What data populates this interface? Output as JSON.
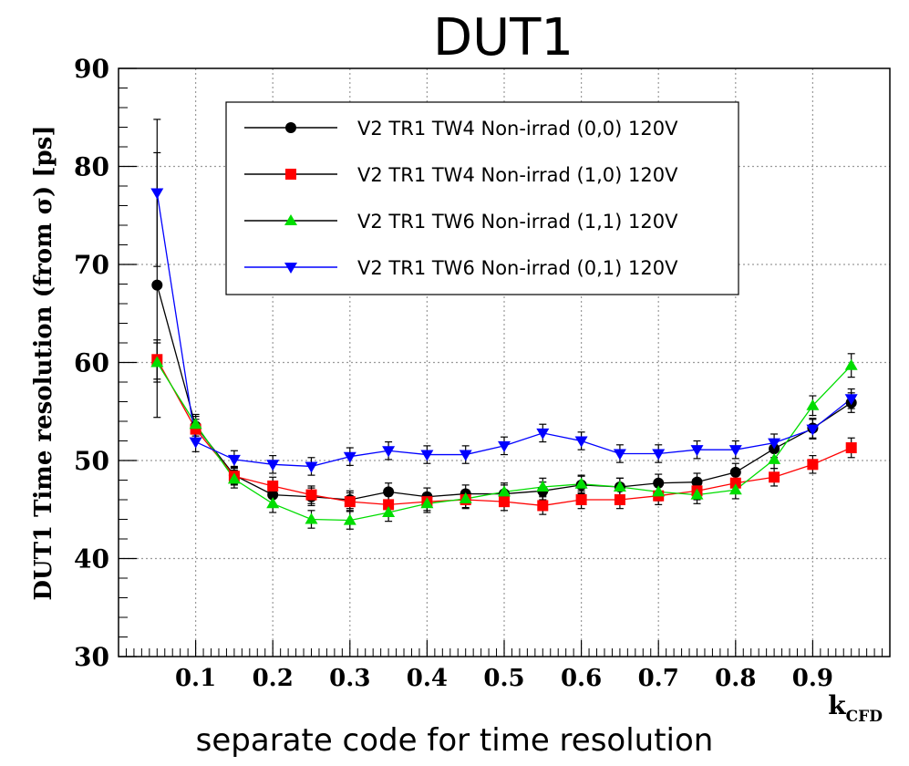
{
  "chart_data": {
    "type": "scatter",
    "title": "DUT1",
    "xlabel": "k",
    "xlabel_sub": "CFD",
    "ylabel": "DUT1 Time resolution (from  σ) [ps]",
    "caption": "separate code for time resolution",
    "xlim": [
      0,
      1
    ],
    "ylim": [
      30,
      90
    ],
    "x_ticks": [
      "0.1",
      "0.2",
      "0.3",
      "0.4",
      "0.5",
      "0.6",
      "0.7",
      "0.8",
      "0.9"
    ],
    "y_ticks": [
      "30",
      "40",
      "50",
      "60",
      "70",
      "80",
      "90"
    ],
    "grid": true,
    "legend_position": "top-right",
    "x": [
      0.05,
      0.1,
      0.15,
      0.2,
      0.25,
      0.3,
      0.35,
      0.4,
      0.45,
      0.5,
      0.55,
      0.6,
      0.65,
      0.7,
      0.75,
      0.8,
      0.85,
      0.9,
      0.95
    ],
    "series": [
      {
        "name": "V2 TR1 TW4 Non-irrad (0,0) 120V",
        "color": "#000000",
        "marker": "circle",
        "values": [
          67.9,
          53.5,
          48.5,
          46.5,
          46.3,
          46.0,
          46.8,
          46.3,
          46.6,
          46.6,
          46.9,
          47.5,
          47.3,
          47.7,
          47.8,
          48.8,
          51.2,
          53.3,
          55.9
        ],
        "errors": [
          13.5,
          1.0,
          0.9,
          0.9,
          0.9,
          0.9,
          0.9,
          0.9,
          0.9,
          0.9,
          0.9,
          0.9,
          0.9,
          0.9,
          0.9,
          0.9,
          0.9,
          1.0,
          1.0
        ]
      },
      {
        "name": "V2 TR1 TW4 Non-irrad (1,0) 120V",
        "color": "#ff0000",
        "marker": "square",
        "values": [
          60.3,
          53.2,
          48.4,
          47.4,
          46.5,
          45.8,
          45.5,
          45.8,
          46.0,
          45.8,
          45.4,
          46.0,
          46.0,
          46.4,
          46.9,
          47.7,
          48.3,
          49.6,
          51.3
        ],
        "errors": [
          2.0,
          1.0,
          0.9,
          0.9,
          0.9,
          0.9,
          0.9,
          0.9,
          0.9,
          0.9,
          0.9,
          0.9,
          0.9,
          0.9,
          0.9,
          0.9,
          0.9,
          0.9,
          1.0
        ]
      },
      {
        "name": "V2 TR1 TW6 Non-irrad (1,1) 120V",
        "color": "#00dd00",
        "marker": "triangle-up",
        "values": [
          60.0,
          53.7,
          48.1,
          45.6,
          44.0,
          43.9,
          44.7,
          45.6,
          46.1,
          46.8,
          47.3,
          47.6,
          47.3,
          46.8,
          46.5,
          47.0,
          50.1,
          55.6,
          59.7
        ],
        "errors": [
          2.0,
          1.0,
          0.9,
          0.9,
          0.9,
          0.9,
          0.9,
          0.9,
          0.9,
          0.9,
          0.9,
          0.9,
          0.9,
          0.9,
          0.9,
          0.9,
          0.9,
          1.0,
          1.2
        ]
      },
      {
        "name": "V2 TR1 TW6 Non-irrad (0,1) 120V",
        "color": "#0000ff",
        "marker": "triangle-down",
        "values": [
          77.3,
          51.9,
          50.1,
          49.6,
          49.4,
          50.4,
          51.0,
          50.6,
          50.6,
          51.5,
          52.8,
          52.0,
          50.7,
          50.7,
          51.1,
          51.1,
          51.8,
          53.2,
          56.3
        ],
        "errors": [
          7.5,
          1.0,
          0.9,
          0.9,
          0.9,
          0.9,
          0.9,
          0.9,
          0.9,
          0.9,
          0.9,
          0.9,
          0.9,
          0.9,
          0.9,
          0.9,
          0.9,
          1.0,
          1.0
        ]
      }
    ]
  }
}
